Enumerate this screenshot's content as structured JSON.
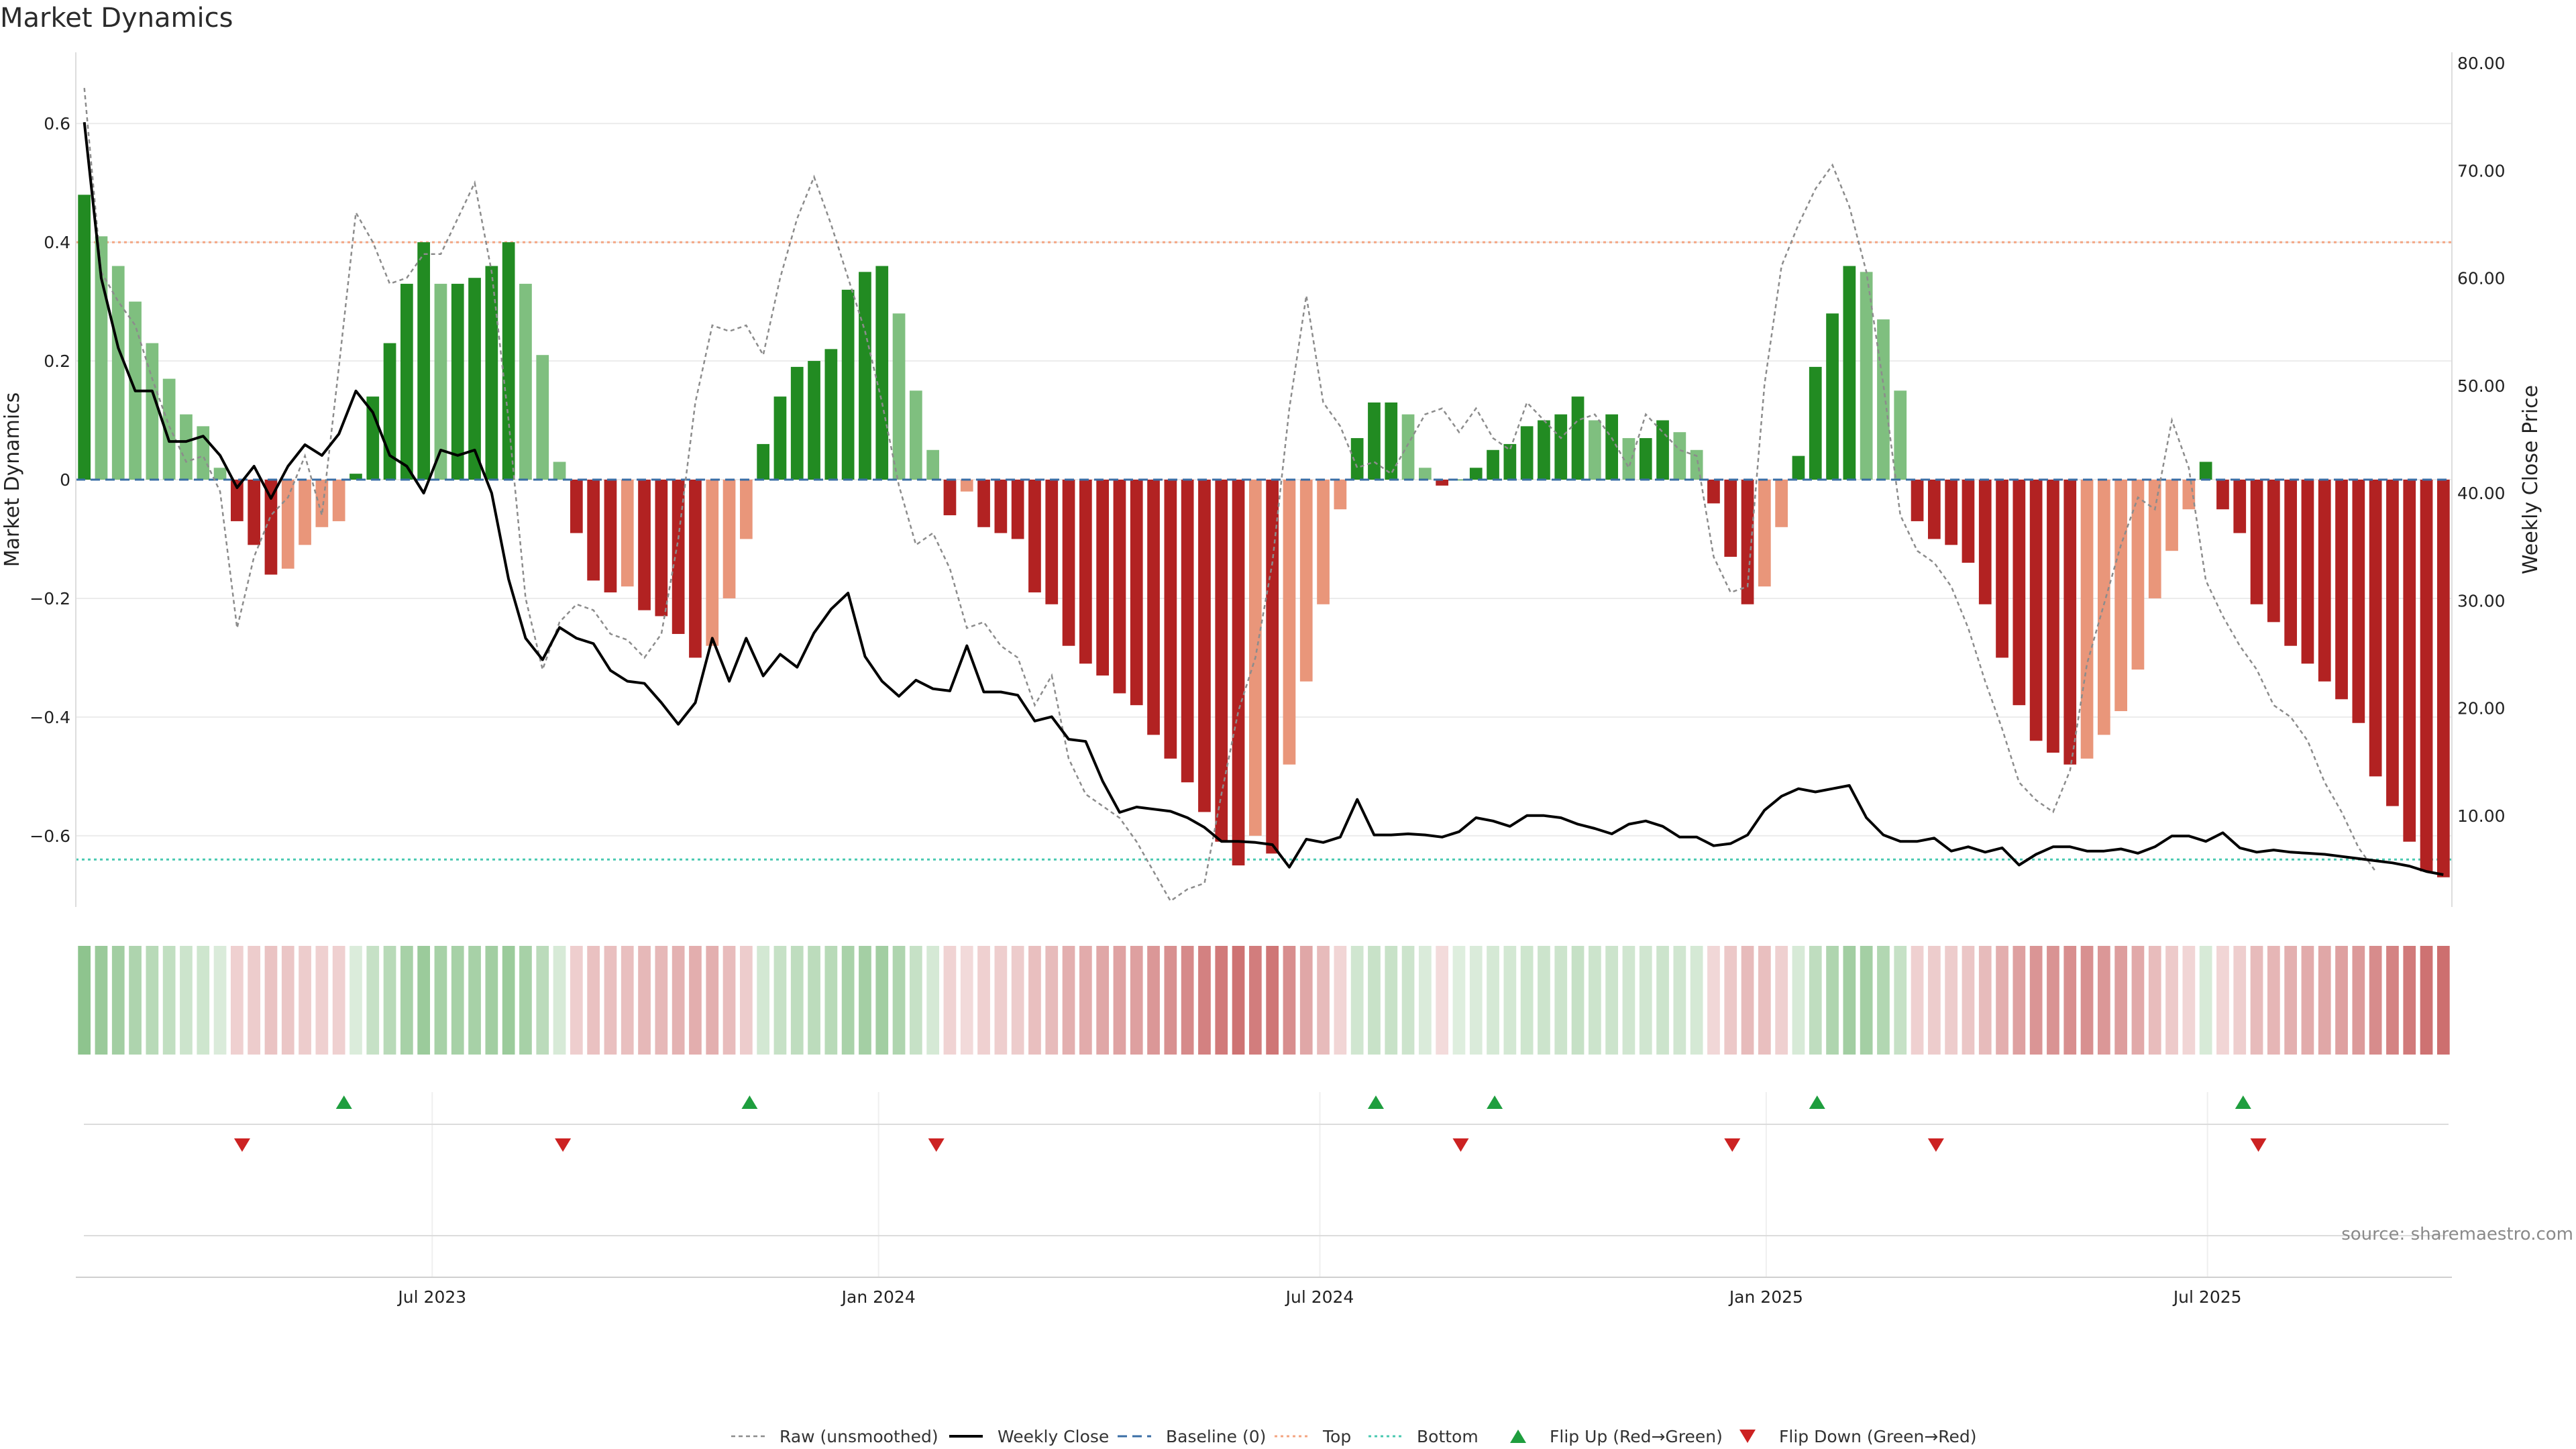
{
  "chart_data": {
    "type": "bar",
    "title": "Market Dynamics",
    "ylabel_left": "Market Dynamics",
    "ylabel_right": "Weekly Close Price",
    "ylim_left": [
      -0.72,
      0.72
    ],
    "ylim_right": [
      1.5,
      81.0
    ],
    "yticks_left": [
      {
        "value": 0.6,
        "label": "0.6"
      },
      {
        "value": 0.4,
        "label": "0.4"
      },
      {
        "value": 0.2,
        "label": "0.2"
      },
      {
        "value": 0,
        "label": "0"
      },
      {
        "value": -0.2,
        "label": "−0.2"
      },
      {
        "value": -0.4,
        "label": "−0.4"
      },
      {
        "value": -0.6,
        "label": "−0.6"
      }
    ],
    "yticks_right": [
      {
        "value": 80,
        "label": "80.00"
      },
      {
        "value": 70,
        "label": "70.00"
      },
      {
        "value": 60,
        "label": "60.00"
      },
      {
        "value": 50,
        "label": "50.00"
      },
      {
        "value": 40,
        "label": "40.00"
      },
      {
        "value": 30,
        "label": "30.00"
      },
      {
        "value": 20,
        "label": "20.00"
      },
      {
        "value": 10,
        "label": "10.00"
      }
    ],
    "xticks": [
      {
        "week": 20.5,
        "label": "Jul 2023"
      },
      {
        "week": 46.8,
        "label": "Jan 2024"
      },
      {
        "week": 72.8,
        "label": "Jul 2024"
      },
      {
        "week": 99.1,
        "label": "Jan 2025"
      },
      {
        "week": 125.1,
        "label": "Jul 2025"
      }
    ],
    "reference_lines": {
      "baseline": 0,
      "top": 0.4,
      "bottom": -0.64
    },
    "bars": [
      0.48,
      0.41,
      0.36,
      0.3,
      0.23,
      0.17,
      0.11,
      0.09,
      0.02,
      -0.07,
      -0.11,
      -0.16,
      -0.15,
      -0.11,
      -0.08,
      -0.07,
      0.01,
      0.14,
      0.23,
      0.33,
      0.4,
      0.33,
      0.33,
      0.34,
      0.36,
      0.4,
      0.33,
      0.21,
      0.03,
      -0.09,
      -0.17,
      -0.19,
      -0.18,
      -0.22,
      -0.23,
      -0.26,
      -0.3,
      -0.28,
      -0.2,
      -0.1,
      0.06,
      0.14,
      0.19,
      0.2,
      0.22,
      0.32,
      0.35,
      0.36,
      0.28,
      0.15,
      0.05,
      -0.06,
      -0.02,
      -0.08,
      -0.09,
      -0.1,
      -0.19,
      -0.21,
      -0.28,
      -0.31,
      -0.33,
      -0.36,
      -0.38,
      -0.43,
      -0.47,
      -0.51,
      -0.56,
      -0.61,
      -0.65,
      -0.6,
      -0.63,
      -0.48,
      -0.34,
      -0.21,
      -0.05,
      0.07,
      0.13,
      0.13,
      0.11,
      0.02,
      -0.01,
      0.0,
      0.02,
      0.05,
      0.06,
      0.09,
      0.1,
      0.11,
      0.14,
      0.1,
      0.11,
      0.07,
      0.07,
      0.1,
      0.08,
      0.05,
      -0.04,
      -0.13,
      -0.21,
      -0.18,
      -0.08,
      0.04,
      0.19,
      0.28,
      0.36,
      0.35,
      0.27,
      0.15,
      -0.07,
      -0.1,
      -0.11,
      -0.14,
      -0.21,
      -0.3,
      -0.38,
      -0.44,
      -0.46,
      -0.48,
      -0.47,
      -0.43,
      -0.39,
      -0.32,
      -0.2,
      -0.12,
      -0.05,
      0.03,
      -0.05,
      -0.09,
      -0.21,
      -0.24,
      -0.28,
      -0.31,
      -0.34,
      -0.37,
      -0.41,
      -0.5,
      -0.55,
      -0.61,
      -0.66,
      -0.67
    ],
    "series": [
      {
        "name": "Raw (unsmoothed)",
        "values": [
          0.66,
          0.35,
          0.3,
          0.26,
          0.17,
          0.09,
          0.03,
          0.04,
          -0.02,
          -0.25,
          -0.13,
          -0.06,
          -0.03,
          0.04,
          -0.06,
          0.19,
          0.45,
          0.4,
          0.33,
          0.34,
          0.38,
          0.38,
          0.44,
          0.5,
          0.35,
          0.1,
          -0.2,
          -0.32,
          -0.24,
          -0.21,
          -0.22,
          -0.26,
          -0.27,
          -0.3,
          -0.26,
          -0.1,
          0.13,
          0.26,
          0.25,
          0.26,
          0.21,
          0.34,
          0.44,
          0.51,
          0.43,
          0.34,
          0.25,
          0.13,
          -0.01,
          -0.11,
          -0.09,
          -0.15,
          -0.25,
          -0.24,
          -0.28,
          -0.3,
          -0.38,
          -0.33,
          -0.47,
          -0.53,
          -0.55,
          -0.57,
          -0.61,
          -0.66,
          -0.71,
          -0.69,
          -0.68,
          -0.53,
          -0.39,
          -0.3,
          -0.14,
          0.12,
          0.31,
          0.13,
          0.09,
          0.02,
          0.03,
          0.01,
          0.06,
          0.11,
          0.12,
          0.08,
          0.12,
          0.07,
          0.05,
          0.13,
          0.1,
          0.07,
          0.1,
          0.11,
          0.07,
          0.02,
          0.11,
          0.08,
          0.05,
          0.04,
          -0.13,
          -0.19,
          -0.18,
          0.16,
          0.36,
          0.43,
          0.49,
          0.53,
          0.46,
          0.35,
          0.16,
          -0.06,
          -0.12,
          -0.14,
          -0.18,
          -0.25,
          -0.34,
          -0.42,
          -0.51,
          -0.54,
          -0.56,
          -0.49,
          -0.31,
          -0.21,
          -0.11,
          -0.03,
          -0.05,
          0.1,
          0.02,
          -0.17,
          -0.23,
          -0.28,
          -0.32,
          -0.38,
          -0.4,
          -0.44,
          -0.51,
          -0.56,
          -0.62,
          -0.66
        ]
      },
      {
        "name": "Weekly Close",
        "values": [
          74.5,
          60.0,
          53.5,
          49.5,
          49.5,
          44.8,
          44.8,
          45.3,
          43.5,
          40.5,
          42.5,
          39.5,
          42.5,
          44.5,
          43.5,
          45.5,
          49.5,
          47.5,
          43.5,
          42.5,
          40.0,
          44.0,
          43.5,
          44.0,
          40.0,
          32.0,
          26.5,
          24.5,
          27.5,
          26.5,
          26.0,
          23.5,
          22.5,
          22.3,
          20.5,
          18.5,
          20.5,
          26.5,
          22.5,
          26.5,
          23.0,
          25.0,
          23.8,
          27.0,
          29.2,
          30.7,
          24.8,
          22.5,
          21.1,
          22.6,
          21.8,
          21.6,
          25.8,
          21.5,
          21.5,
          21.2,
          18.8,
          19.2,
          17.1,
          16.9,
          13.2,
          10.3,
          10.8,
          10.6,
          10.4,
          9.8,
          8.9,
          7.6,
          7.6,
          7.5,
          7.3,
          5.2,
          7.8,
          7.5,
          8.0,
          11.5,
          8.2,
          8.2,
          8.3,
          8.2,
          8.0,
          8.5,
          9.8,
          9.5,
          9.0,
          10.0,
          10.0,
          9.8,
          9.2,
          8.8,
          8.3,
          9.2,
          9.5,
          9.0,
          8.0,
          8.0,
          7.2,
          7.4,
          8.2,
          10.5,
          11.8,
          12.5,
          12.2,
          12.5,
          12.8,
          9.8,
          8.2,
          7.6,
          7.6,
          7.9,
          6.7,
          7.1,
          6.6,
          7.0,
          5.4,
          6.4,
          7.1,
          7.1,
          6.7,
          6.7,
          6.9,
          6.5,
          7.1,
          8.1,
          8.1,
          7.6,
          8.4,
          7.0,
          6.6,
          6.8,
          6.6,
          6.5,
          6.4,
          6.2,
          6.0,
          5.8,
          5.6,
          5.3,
          4.8,
          4.5
        ]
      }
    ],
    "regime_strip_values": [
      0.48,
      0.41,
      0.36,
      0.3,
      0.23,
      0.17,
      0.11,
      0.09,
      0.02,
      -0.07,
      -0.11,
      -0.16,
      -0.15,
      -0.11,
      -0.08,
      -0.07,
      0.01,
      0.14,
      0.23,
      0.33,
      0.4,
      0.33,
      0.33,
      0.34,
      0.36,
      0.4,
      0.33,
      0.21,
      0.03,
      -0.09,
      -0.17,
      -0.19,
      -0.18,
      -0.22,
      -0.23,
      -0.26,
      -0.3,
      -0.28,
      -0.2,
      -0.1,
      0.06,
      0.14,
      0.19,
      0.2,
      0.22,
      0.32,
      0.35,
      0.36,
      0.28,
      0.15,
      0.05,
      -0.06,
      -0.02,
      -0.08,
      -0.09,
      -0.1,
      -0.19,
      -0.21,
      -0.28,
      -0.31,
      -0.33,
      -0.36,
      -0.38,
      -0.43,
      -0.47,
      -0.51,
      -0.56,
      -0.61,
      -0.65,
      -0.6,
      -0.63,
      -0.48,
      -0.34,
      -0.21,
      -0.05,
      0.07,
      0.13,
      0.13,
      0.11,
      0.02,
      -0.01,
      0.0,
      0.02,
      0.05,
      0.06,
      0.09,
      0.1,
      0.11,
      0.14,
      0.1,
      0.11,
      0.07,
      0.07,
      0.1,
      0.08,
      0.05,
      -0.04,
      -0.13,
      -0.21,
      -0.18,
      -0.08,
      0.04,
      0.19,
      0.28,
      0.36,
      0.35,
      0.27,
      0.15,
      -0.07,
      -0.1,
      -0.11,
      -0.14,
      -0.21,
      -0.3,
      -0.38,
      -0.44,
      -0.46,
      -0.48,
      -0.47,
      -0.43,
      -0.39,
      -0.32,
      -0.2,
      -0.12,
      -0.05,
      0.03,
      -0.05,
      -0.09,
      -0.21,
      -0.24,
      -0.28,
      -0.31,
      -0.34,
      -0.37,
      -0.41,
      -0.5,
      -0.55,
      -0.61,
      -0.66,
      -0.67
    ],
    "flip_up_weeks": [
      15.3,
      39.2,
      76.1,
      83.1,
      102.1,
      127.2
    ],
    "flip_down_weeks": [
      9.3,
      28.2,
      50.2,
      81.1,
      97.1,
      109.1,
      128.1
    ],
    "legend": [
      {
        "key": "raw",
        "label": "Raw (unsmoothed)"
      },
      {
        "key": "close",
        "label": "Weekly Close"
      },
      {
        "key": "baseline",
        "label": "Baseline (0)"
      },
      {
        "key": "top",
        "label": "Top"
      },
      {
        "key": "bottom",
        "label": "Bottom"
      },
      {
        "key": "flipup",
        "label": "Flip Up (Red→Green)"
      },
      {
        "key": "flipdown",
        "label": "Flip Down (Green→Red)"
      }
    ],
    "source_note": "source: sharemaestro.com"
  },
  "colors": {
    "green_strong": "#228b22",
    "green_light": "#7fbf7f",
    "red_strong": "#b22222",
    "red_light": "#e9967a",
    "close_line": "#000000",
    "raw_line": "#8c8c8c",
    "baseline": "#3a6ea5",
    "top": "#f4a582",
    "bottom": "#48c9b0",
    "flip_up": "#1e9e3e",
    "flip_down": "#cc2222",
    "grid": "#ececec"
  }
}
